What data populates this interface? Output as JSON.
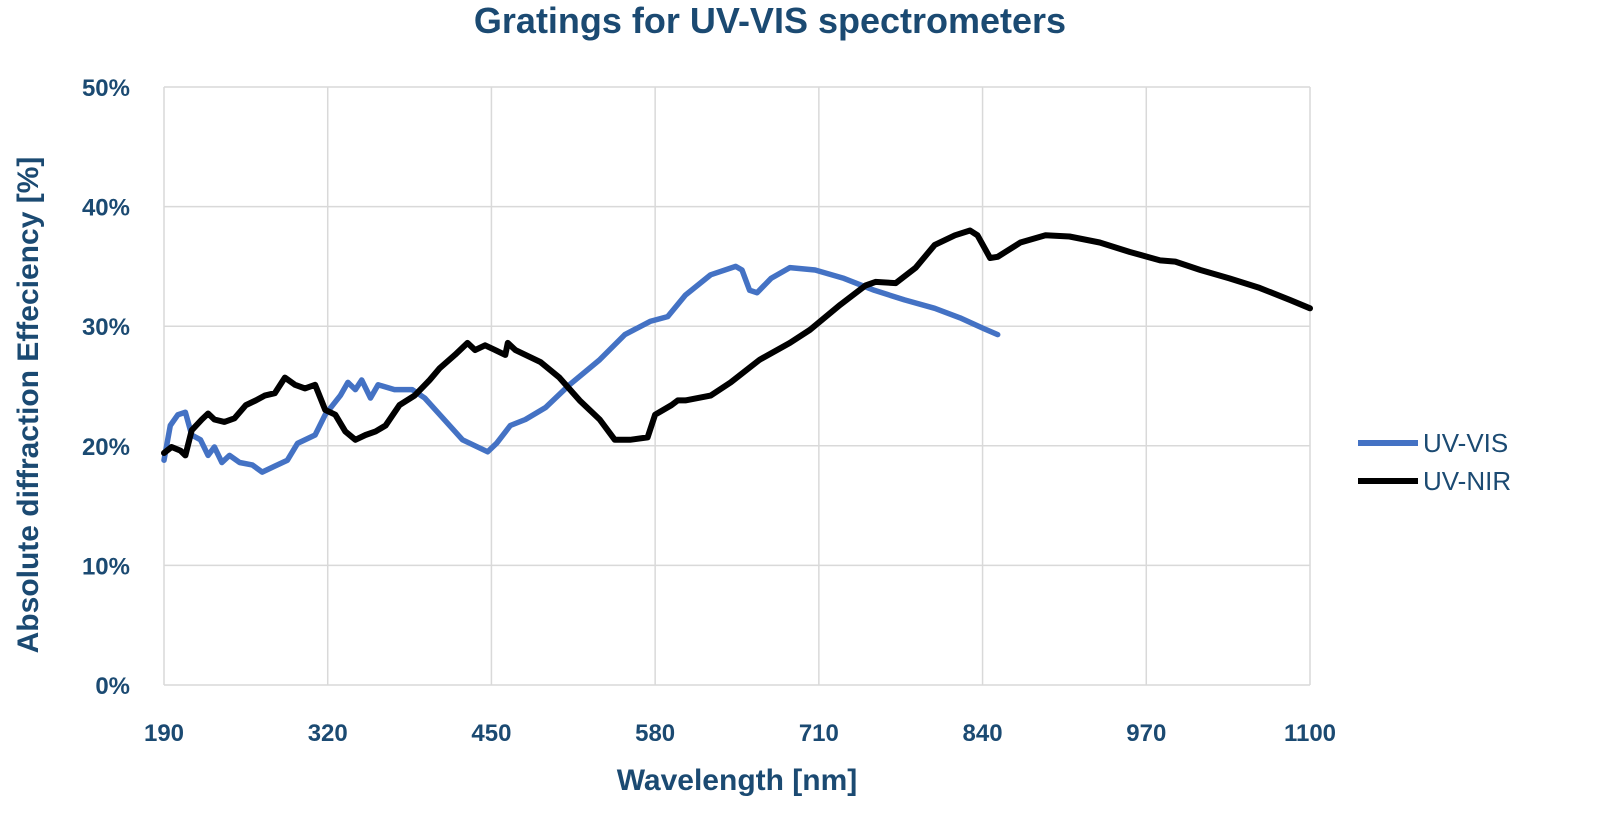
{
  "chart_data": {
    "type": "line",
    "title": "Gratings for UV-VIS spectrometers",
    "xlabel": "Wavelength [nm]",
    "ylabel": "Absolute diffraction Effeciency  [%]",
    "xlim": [
      190,
      1100
    ],
    "ylim": [
      0,
      50
    ],
    "xticks": [
      190,
      320,
      450,
      580,
      710,
      840,
      970,
      1100
    ],
    "xtick_labels": [
      "190",
      "320",
      "450",
      "580",
      "710",
      "840",
      "970",
      "1100"
    ],
    "yticks": [
      0,
      10,
      20,
      30,
      40,
      50
    ],
    "ytick_labels": [
      "0%",
      "10%",
      "20%",
      "30%",
      "40%",
      "50%"
    ],
    "grid": true,
    "legend_position": "right",
    "series": [
      {
        "name": "UV-VIS",
        "color": "#4472c4",
        "x": [
          190,
          195,
          201,
          207,
          212,
          219,
          225,
          230,
          236,
          242,
          250,
          260,
          268,
          278,
          288,
          296,
          310,
          318,
          330,
          336,
          342,
          347,
          354,
          360,
          373,
          387,
          397,
          409,
          427,
          447,
          454,
          465,
          477,
          493,
          512,
          536,
          556,
          576,
          590,
          604,
          624,
          644,
          649,
          655,
          661,
          672,
          687,
          707,
          730,
          754,
          778,
          802,
          822,
          841,
          852
        ],
        "y": [
          18.8,
          21.7,
          22.6,
          22.8,
          20.9,
          20.5,
          19.2,
          19.9,
          18.6,
          19.2,
          18.6,
          18.4,
          17.8,
          18.3,
          18.8,
          20.2,
          20.9,
          22.6,
          24.2,
          25.3,
          24.7,
          25.5,
          24.0,
          25.1,
          24.7,
          24.7,
          24.0,
          22.6,
          20.5,
          19.5,
          20.2,
          21.7,
          22.2,
          23.2,
          25.1,
          27.2,
          29.3,
          30.4,
          30.8,
          32.6,
          34.3,
          35.0,
          34.7,
          33.0,
          32.8,
          34.0,
          34.9,
          34.7,
          34.0,
          33.0,
          32.2,
          31.5,
          30.7,
          29.8,
          29.3
        ]
      },
      {
        "name": "UV-NIR",
        "color": "#000000",
        "x": [
          190,
          196,
          203,
          207,
          212,
          220,
          225,
          230,
          238,
          246,
          255,
          263,
          270,
          278,
          286,
          294,
          302,
          310,
          318,
          326,
          334,
          342,
          350,
          358,
          366,
          377,
          389,
          401,
          409,
          421,
          431,
          437,
          445,
          453,
          461,
          463,
          469,
          489,
          504,
          520,
          536,
          548,
          560,
          574,
          580,
          593,
          598,
          604,
          624,
          640,
          663,
          687,
          703,
          727,
          747,
          755,
          771,
          787,
          802,
          818,
          830,
          836,
          846,
          852,
          870,
          890,
          909,
          933,
          957,
          981,
          993,
          1013,
          1036,
          1060,
          1084,
          1100
        ],
        "y": [
          19.4,
          19.9,
          19.6,
          19.2,
          21.3,
          22.2,
          22.7,
          22.2,
          22.0,
          22.3,
          23.4,
          23.8,
          24.2,
          24.4,
          25.7,
          25.1,
          24.8,
          25.1,
          23.0,
          22.6,
          21.2,
          20.5,
          20.9,
          21.2,
          21.7,
          23.4,
          24.2,
          25.5,
          26.5,
          27.6,
          28.6,
          28.0,
          28.4,
          28.0,
          27.6,
          28.6,
          28.0,
          27.0,
          25.7,
          23.8,
          22.2,
          20.5,
          20.5,
          20.7,
          22.6,
          23.4,
          23.8,
          23.8,
          24.2,
          25.3,
          27.2,
          28.6,
          29.7,
          31.8,
          33.4,
          33.7,
          33.6,
          34.9,
          36.8,
          37.6,
          38.0,
          37.6,
          35.7,
          35.8,
          37.0,
          37.6,
          37.5,
          37.0,
          36.2,
          35.5,
          35.4,
          34.7,
          34.0,
          33.2,
          32.2,
          31.5
        ]
      }
    ]
  }
}
